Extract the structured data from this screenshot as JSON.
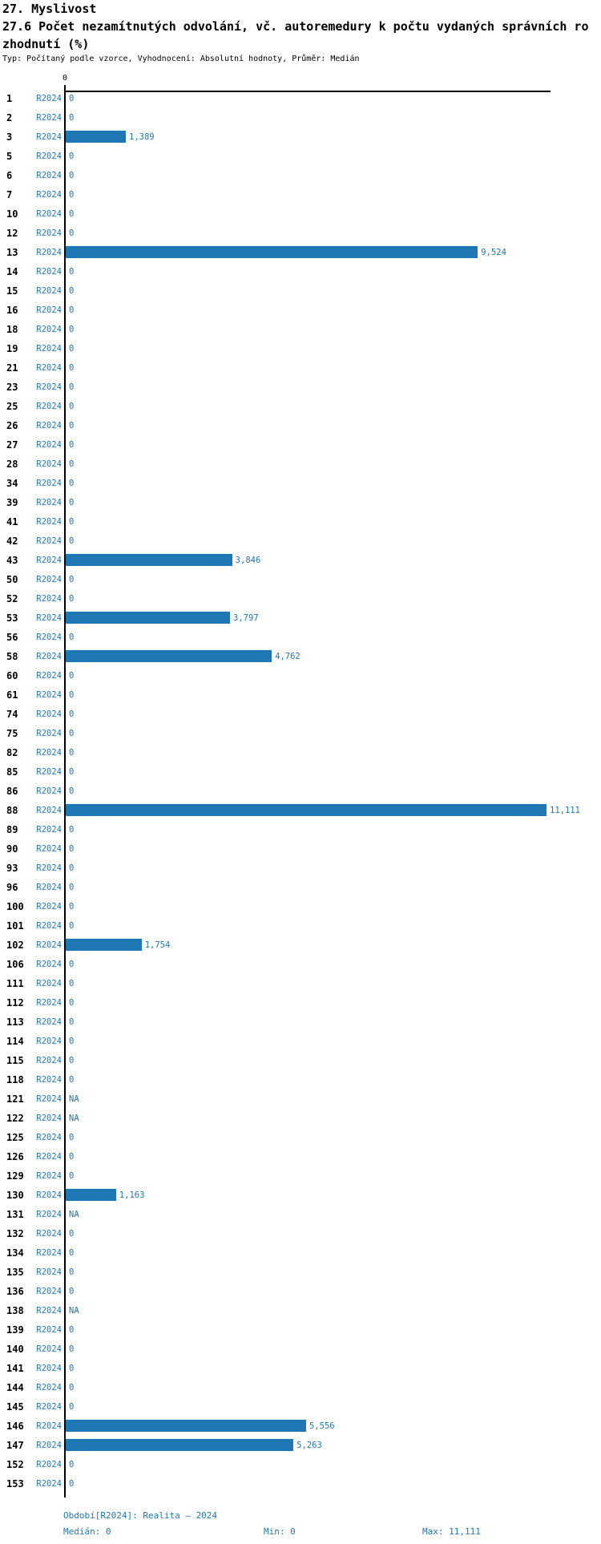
{
  "title": "27. Myslivost",
  "subtitle_lines": [
    "27.6 Počet nezamítnutých odvolání, vč. autoremedury k počtu vydaných správních ro",
    "zhodnutí (%)"
  ],
  "meta": "Typ: Počítaný podle vzorce, Vyhodnocení: Absolutní hodnoty, Průměr: Medián",
  "axis": {
    "tick_label": "0"
  },
  "colors": {
    "bar": "#1f77b4",
    "label_blue": "#1f77b4",
    "axis_black": "#000000"
  },
  "chart_data": {
    "type": "bar",
    "orientation": "horizontal",
    "title": "27.6 Počet nezamítnutých odvolání, vč. autoremedury k počtu vydaných správních rozhodnutí (%)",
    "series_name": "R2024",
    "xlabel": "",
    "ylabel": "",
    "xlim": [
      0,
      11234
    ],
    "grid": false,
    "rows": [
      {
        "category": "1",
        "series": "R2024",
        "value": 0,
        "label": "0"
      },
      {
        "category": "2",
        "series": "R2024",
        "value": 0,
        "label": "0"
      },
      {
        "category": "3",
        "series": "R2024",
        "value": 1389,
        "label": "1,389"
      },
      {
        "category": "5",
        "series": "R2024",
        "value": 0,
        "label": "0"
      },
      {
        "category": "6",
        "series": "R2024",
        "value": 0,
        "label": "0"
      },
      {
        "category": "7",
        "series": "R2024",
        "value": 0,
        "label": "0"
      },
      {
        "category": "10",
        "series": "R2024",
        "value": 0,
        "label": "0"
      },
      {
        "category": "12",
        "series": "R2024",
        "value": 0,
        "label": "0"
      },
      {
        "category": "13",
        "series": "R2024",
        "value": 9524,
        "label": "9,524"
      },
      {
        "category": "14",
        "series": "R2024",
        "value": 0,
        "label": "0"
      },
      {
        "category": "15",
        "series": "R2024",
        "value": 0,
        "label": "0"
      },
      {
        "category": "16",
        "series": "R2024",
        "value": 0,
        "label": "0"
      },
      {
        "category": "18",
        "series": "R2024",
        "value": 0,
        "label": "0"
      },
      {
        "category": "19",
        "series": "R2024",
        "value": 0,
        "label": "0"
      },
      {
        "category": "21",
        "series": "R2024",
        "value": 0,
        "label": "0"
      },
      {
        "category": "23",
        "series": "R2024",
        "value": 0,
        "label": "0"
      },
      {
        "category": "25",
        "series": "R2024",
        "value": 0,
        "label": "0"
      },
      {
        "category": "26",
        "series": "R2024",
        "value": 0,
        "label": "0"
      },
      {
        "category": "27",
        "series": "R2024",
        "value": 0,
        "label": "0"
      },
      {
        "category": "28",
        "series": "R2024",
        "value": 0,
        "label": "0"
      },
      {
        "category": "34",
        "series": "R2024",
        "value": 0,
        "label": "0"
      },
      {
        "category": "39",
        "series": "R2024",
        "value": 0,
        "label": "0"
      },
      {
        "category": "41",
        "series": "R2024",
        "value": 0,
        "label": "0"
      },
      {
        "category": "42",
        "series": "R2024",
        "value": 0,
        "label": "0"
      },
      {
        "category": "43",
        "series": "R2024",
        "value": 3846,
        "label": "3,846"
      },
      {
        "category": "50",
        "series": "R2024",
        "value": 0,
        "label": "0"
      },
      {
        "category": "52",
        "series": "R2024",
        "value": 0,
        "label": "0"
      },
      {
        "category": "53",
        "series": "R2024",
        "value": 3797,
        "label": "3,797"
      },
      {
        "category": "56",
        "series": "R2024",
        "value": 0,
        "label": "0"
      },
      {
        "category": "58",
        "series": "R2024",
        "value": 4762,
        "label": "4,762"
      },
      {
        "category": "60",
        "series": "R2024",
        "value": 0,
        "label": "0"
      },
      {
        "category": "61",
        "series": "R2024",
        "value": 0,
        "label": "0"
      },
      {
        "category": "74",
        "series": "R2024",
        "value": 0,
        "label": "0"
      },
      {
        "category": "75",
        "series": "R2024",
        "value": 0,
        "label": "0"
      },
      {
        "category": "82",
        "series": "R2024",
        "value": 0,
        "label": "0"
      },
      {
        "category": "85",
        "series": "R2024",
        "value": 0,
        "label": "0"
      },
      {
        "category": "86",
        "series": "R2024",
        "value": 0,
        "label": "0"
      },
      {
        "category": "88",
        "series": "R2024",
        "value": 11111,
        "label": "11,111"
      },
      {
        "category": "89",
        "series": "R2024",
        "value": 0,
        "label": "0"
      },
      {
        "category": "90",
        "series": "R2024",
        "value": 0,
        "label": "0"
      },
      {
        "category": "93",
        "series": "R2024",
        "value": 0,
        "label": "0"
      },
      {
        "category": "96",
        "series": "R2024",
        "value": 0,
        "label": "0"
      },
      {
        "category": "100",
        "series": "R2024",
        "value": 0,
        "label": "0"
      },
      {
        "category": "101",
        "series": "R2024",
        "value": 0,
        "label": "0"
      },
      {
        "category": "102",
        "series": "R2024",
        "value": 1754,
        "label": "1,754"
      },
      {
        "category": "106",
        "series": "R2024",
        "value": 0,
        "label": "0"
      },
      {
        "category": "111",
        "series": "R2024",
        "value": 0,
        "label": "0"
      },
      {
        "category": "112",
        "series": "R2024",
        "value": 0,
        "label": "0"
      },
      {
        "category": "113",
        "series": "R2024",
        "value": 0,
        "label": "0"
      },
      {
        "category": "114",
        "series": "R2024",
        "value": 0,
        "label": "0"
      },
      {
        "category": "115",
        "series": "R2024",
        "value": 0,
        "label": "0"
      },
      {
        "category": "118",
        "series": "R2024",
        "value": 0,
        "label": "0"
      },
      {
        "category": "121",
        "series": "R2024",
        "value": null,
        "label": "NA"
      },
      {
        "category": "122",
        "series": "R2024",
        "value": null,
        "label": "NA"
      },
      {
        "category": "125",
        "series": "R2024",
        "value": 0,
        "label": "0"
      },
      {
        "category": "126",
        "series": "R2024",
        "value": 0,
        "label": "0"
      },
      {
        "category": "129",
        "series": "R2024",
        "value": 0,
        "label": "0"
      },
      {
        "category": "130",
        "series": "R2024",
        "value": 1163,
        "label": "1,163"
      },
      {
        "category": "131",
        "series": "R2024",
        "value": null,
        "label": "NA"
      },
      {
        "category": "132",
        "series": "R2024",
        "value": 0,
        "label": "0"
      },
      {
        "category": "134",
        "series": "R2024",
        "value": 0,
        "label": "0"
      },
      {
        "category": "135",
        "series": "R2024",
        "value": 0,
        "label": "0"
      },
      {
        "category": "136",
        "series": "R2024",
        "value": 0,
        "label": "0"
      },
      {
        "category": "138",
        "series": "R2024",
        "value": null,
        "label": "NA"
      },
      {
        "category": "139",
        "series": "R2024",
        "value": 0,
        "label": "0"
      },
      {
        "category": "140",
        "series": "R2024",
        "value": 0,
        "label": "0"
      },
      {
        "category": "141",
        "series": "R2024",
        "value": 0,
        "label": "0"
      },
      {
        "category": "144",
        "series": "R2024",
        "value": 0,
        "label": "0"
      },
      {
        "category": "145",
        "series": "R2024",
        "value": 0,
        "label": "0"
      },
      {
        "category": "146",
        "series": "R2024",
        "value": 5556,
        "label": "5,556"
      },
      {
        "category": "147",
        "series": "R2024",
        "value": 5263,
        "label": "5,263"
      },
      {
        "category": "152",
        "series": "R2024",
        "value": 0,
        "label": "0"
      },
      {
        "category": "153",
        "series": "R2024",
        "value": 0,
        "label": "0"
      }
    ]
  },
  "footer": {
    "period": "Období[R2024]: Realita – 2024",
    "median": "Medián: 0",
    "min": "Min: 0",
    "max": "Max: 11,111"
  }
}
